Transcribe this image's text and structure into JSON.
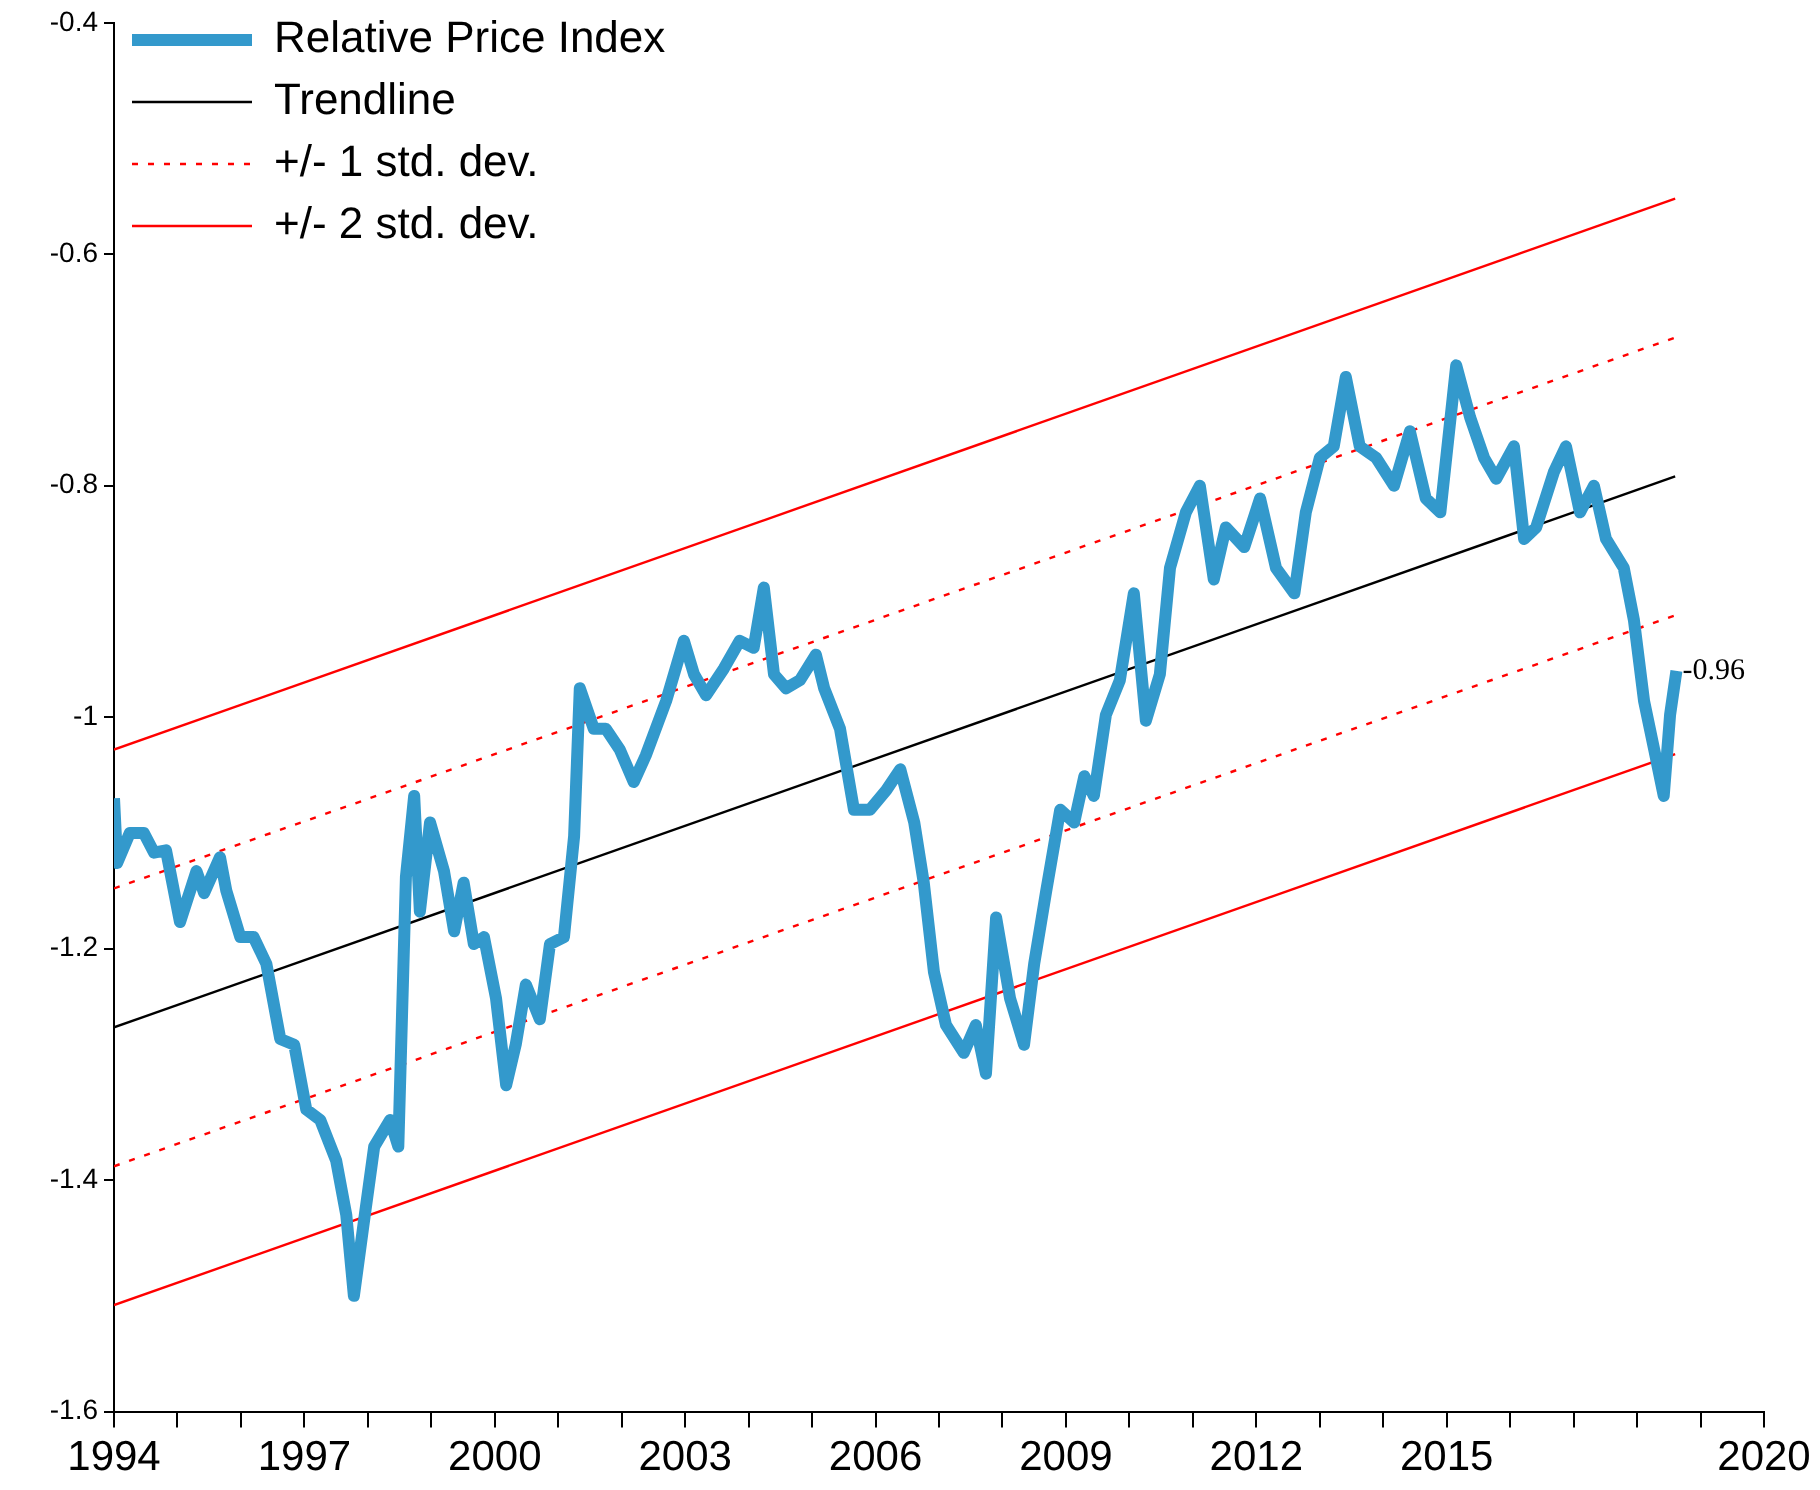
{
  "chart_data": {
    "type": "line",
    "legend": "top left",
    "grid": false,
    "xlim": [
      1994,
      2020
    ],
    "ylim": [
      -1.6,
      -0.4
    ],
    "xticks": [
      1994,
      {
        "value": 1995,
        "label": null
      },
      {
        "value": 1996,
        "label": null
      },
      1997,
      {
        "value": 1998,
        "label": null
      },
      {
        "value": 1999,
        "label": null
      },
      2000,
      {
        "value": 2001,
        "label": null
      },
      {
        "value": 2002,
        "label": null
      },
      2003,
      {
        "value": 2004,
        "label": null
      },
      {
        "value": 2005,
        "label": null
      },
      2006,
      {
        "value": 2007,
        "label": null
      },
      {
        "value": 2008,
        "label": null
      },
      2009,
      {
        "value": 2010,
        "label": null
      },
      {
        "value": 2011,
        "label": null
      },
      2012,
      {
        "value": 2013,
        "label": null
      },
      {
        "value": 2014,
        "label": null
      },
      2015,
      {
        "value": 2016,
        "label": null
      },
      {
        "value": 2017,
        "label": null
      },
      {
        "value": 2018,
        "label": null
      },
      {
        "value": 2019,
        "label": null
      },
      2020
    ],
    "yticks": [
      -1.6,
      -1.4,
      -1.2,
      -1.0,
      -0.8,
      -0.6,
      -0.4
    ],
    "series": [
      {
        "name": "Relative Price Index",
        "type": "line",
        "color": "#3399cc",
        "line_style": "solid",
        "x": [
          1994.0,
          1994.05,
          1994.25,
          1994.47,
          1994.63,
          1994.82,
          1995.04,
          1995.3,
          1995.42,
          1995.67,
          1995.77,
          1995.99,
          1996.2,
          1996.4,
          1996.62,
          1996.84,
          1997.03,
          1997.25,
          1997.5,
          1997.66,
          1997.78,
          1997.94,
          1998.1,
          1998.35,
          1998.48,
          1998.6,
          1998.73,
          1998.82,
          1998.98,
          1999.2,
          1999.36,
          1999.51,
          1999.67,
          1999.83,
          2000.02,
          2000.18,
          2000.33,
          2000.49,
          2000.71,
          2000.87,
          2001.09,
          2001.25,
          2001.34,
          2001.56,
          2001.75,
          2001.97,
          2002.19,
          2002.38,
          2002.7,
          2002.98,
          2003.14,
          2003.33,
          2003.61,
          2003.86,
          2004.08,
          2004.24,
          2004.4,
          2004.59,
          2004.81,
          2005.06,
          2005.19,
          2005.44,
          2005.66,
          2005.91,
          2006.17,
          2006.39,
          2006.61,
          2006.76,
          2006.92,
          2007.11,
          2007.39,
          2007.58,
          2007.74,
          2007.9,
          2008.12,
          2008.34,
          2008.5,
          2008.69,
          2008.91,
          2009.13,
          2009.29,
          2009.44,
          2009.63,
          2009.85,
          2010.07,
          2010.26,
          2010.48,
          2010.64,
          2010.89,
          2011.11,
          2011.33,
          2011.52,
          2011.81,
          2012.06,
          2012.31,
          2012.6,
          2012.78,
          2013.0,
          2013.22,
          2013.41,
          2013.63,
          2013.89,
          2014.17,
          2014.42,
          2014.67,
          2014.9,
          2015.15,
          2015.37,
          2015.59,
          2015.78,
          2016.06,
          2016.22,
          2016.41,
          2016.69,
          2016.88,
          2017.1,
          2017.32,
          2017.51,
          2017.79,
          2017.95,
          2018.11,
          2018.27,
          2018.42,
          2018.52,
          2018.62
        ],
        "values": [
          -1.07,
          -1.126,
          -1.1,
          -1.1,
          -1.117,
          -1.115,
          -1.177,
          -1.133,
          -1.152,
          -1.121,
          -1.15,
          -1.19,
          -1.19,
          -1.213,
          -1.278,
          -1.283,
          -1.339,
          -1.348,
          -1.383,
          -1.43,
          -1.5,
          -1.435,
          -1.371,
          -1.348,
          -1.371,
          -1.138,
          -1.068,
          -1.168,
          -1.091,
          -1.133,
          -1.185,
          -1.143,
          -1.196,
          -1.19,
          -1.243,
          -1.318,
          -1.283,
          -1.231,
          -1.261,
          -1.196,
          -1.19,
          -1.103,
          -0.975,
          -1.01,
          -1.01,
          -1.028,
          -1.056,
          -1.033,
          -0.986,
          -0.934,
          -0.963,
          -0.981,
          -0.958,
          -0.934,
          -0.94,
          -0.888,
          -0.963,
          -0.975,
          -0.968,
          -0.946,
          -0.975,
          -1.01,
          -1.08,
          -1.08,
          -1.063,
          -1.045,
          -1.091,
          -1.143,
          -1.22,
          -1.266,
          -1.29,
          -1.266,
          -1.308,
          -1.173,
          -1.243,
          -1.283,
          -1.213,
          -1.15,
          -1.08,
          -1.091,
          -1.051,
          -1.068,
          -0.998,
          -0.968,
          -0.893,
          -1.003,
          -0.963,
          -0.871,
          -0.823,
          -0.8,
          -0.881,
          -0.836,
          -0.853,
          -0.811,
          -0.871,
          -0.893,
          -0.823,
          -0.776,
          -0.766,
          -0.706,
          -0.766,
          -0.776,
          -0.8,
          -0.753,
          -0.811,
          -0.823,
          -0.696,
          -0.741,
          -0.776,
          -0.794,
          -0.766,
          -0.846,
          -0.836,
          -0.788,
          -0.766,
          -0.823,
          -0.8,
          -0.846,
          -0.871,
          -0.916,
          -0.986,
          -1.028,
          -1.068,
          -0.998,
          -0.96
        ],
        "value_labels": [
          null,
          null,
          null,
          null,
          null,
          null,
          null,
          null,
          null,
          null,
          null,
          null,
          null,
          null,
          null,
          null,
          null,
          null,
          null,
          null,
          null,
          null,
          null,
          null,
          null,
          null,
          null,
          null,
          null,
          null,
          null,
          null,
          null,
          null,
          null,
          null,
          null,
          null,
          null,
          null,
          null,
          null,
          null,
          null,
          null,
          null,
          null,
          null,
          null,
          null,
          null,
          null,
          null,
          null,
          null,
          null,
          null,
          null,
          null,
          null,
          null,
          null,
          null,
          null,
          null,
          null,
          null,
          null,
          null,
          null,
          null,
          null,
          null,
          null,
          null,
          null,
          null,
          null,
          null,
          null,
          null,
          null,
          null,
          null,
          null,
          null,
          null,
          null,
          null,
          null,
          null,
          null,
          null,
          null,
          null,
          null,
          null,
          null,
          null,
          null,
          null,
          null,
          null,
          null,
          null,
          null,
          null,
          null,
          null,
          null,
          null,
          null,
          null,
          null,
          null,
          null,
          null,
          null,
          null,
          null,
          null,
          null,
          null,
          null,
          "-0.96"
        ]
      },
      {
        "name": "Trendline",
        "type": "line",
        "color": "#000000",
        "line_style": "solid",
        "x": [
          1994,
          2018.6
        ],
        "values": [
          -1.268,
          -0.792
        ]
      },
      {
        "name": "+/- 1 std. dev.",
        "type": "line",
        "color": "#ff0000",
        "line_style": "dotted",
        "x": [
          1994,
          2018.6
        ],
        "values": [
          -1.148,
          -0.672
        ]
      },
      {
        "type": "line",
        "color": "#ff0000",
        "line_style": "dotted",
        "x": [
          1994,
          2018.6
        ],
        "values": [
          -1.388,
          -0.912
        ]
      },
      {
        "name": "+/- 2 std. dev.",
        "type": "line",
        "color": "#ff0000",
        "line_style": "solid",
        "x": [
          1994,
          2018.6
        ],
        "values": [
          -1.028,
          -0.552
        ]
      },
      {
        "type": "line",
        "color": "#ff0000",
        "line_style": "solid",
        "x": [
          1994,
          2018.6
        ],
        "values": [
          -1.508,
          -1.032
        ]
      }
    ]
  }
}
